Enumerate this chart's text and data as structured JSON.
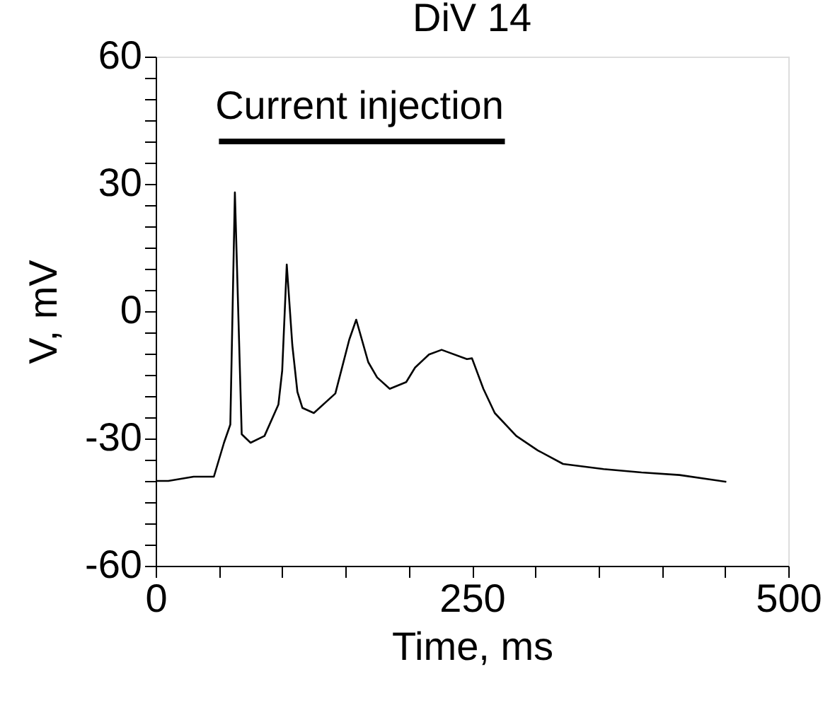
{
  "chart_data": {
    "type": "line",
    "title": "DiV 14",
    "xlabel": "Time, ms",
    "ylabel": "V, mV",
    "xlim": [
      0,
      500
    ],
    "ylim": [
      -60,
      60
    ],
    "xticks": [
      0,
      {
        "value": 50,
        "label": null
      },
      {
        "value": 100,
        "label": null
      },
      {
        "value": 150,
        "label": null
      },
      {
        "value": 200,
        "label": null
      },
      250,
      {
        "value": 300,
        "label": null
      },
      {
        "value": 350,
        "label": null
      },
      {
        "value": 400,
        "label": null
      },
      {
        "value": 450,
        "label": null
      },
      500
    ],
    "yticks": [
      -60,
      {
        "value": -55,
        "label": null
      },
      {
        "value": -50,
        "label": null
      },
      {
        "value": -45,
        "label": null
      },
      {
        "value": -40,
        "label": null
      },
      {
        "value": -35,
        "label": null
      },
      -30,
      {
        "value": -25,
        "label": null
      },
      {
        "value": -20,
        "label": null
      },
      {
        "value": -15,
        "label": null
      },
      {
        "value": -10,
        "label": null
      },
      {
        "value": -5,
        "label": null
      },
      0,
      {
        "value": 5,
        "label": null
      },
      {
        "value": 10,
        "label": null
      },
      {
        "value": 15,
        "label": null
      },
      {
        "value": 20,
        "label": null
      },
      {
        "value": 25,
        "label": null
      },
      30,
      {
        "value": 35,
        "label": null
      },
      {
        "value": 40,
        "label": null
      },
      {
        "value": 45,
        "label": null
      },
      {
        "value": 50,
        "label": null
      },
      {
        "value": 55,
        "label": null
      },
      60
    ],
    "grid": false,
    "marker": "none",
    "line_style": "solid",
    "series": [
      {
        "color": "#000000",
        "x": [
          0,
          10,
          20,
          30,
          40,
          46,
          54,
          59,
          62.6,
          68,
          75,
          86,
          97,
          100,
          103.6,
          108,
          112,
          116,
          125,
          142,
          153,
          158.5,
          168,
          175,
          185,
          198,
          205,
          216,
          226,
          246,
          250,
          259,
          268,
          285,
          302,
          322,
          354,
          384,
          414,
          451
        ],
        "values": [
          -40,
          -40,
          -39.5,
          -39,
          -39,
          -39,
          -31,
          -26.7,
          28,
          -29,
          -31,
          -29.4,
          -22,
          -14,
          11,
          -8,
          -19,
          -22.8,
          -24,
          -19.4,
          -6.7,
          -2,
          -12,
          -15.6,
          -18.3,
          -16.7,
          -13.3,
          -10.2,
          -9.1,
          -11.3,
          -11.1,
          -18.3,
          -24,
          -29.4,
          -32.8,
          -36,
          -37.2,
          -38,
          -38.6,
          -40.2
        ]
      },
      {
        "color": "#000000",
        "x": [
          50,
          276
        ],
        "values": [
          40,
          40
        ]
      }
    ],
    "annotations": [
      "Current injection"
    ]
  }
}
